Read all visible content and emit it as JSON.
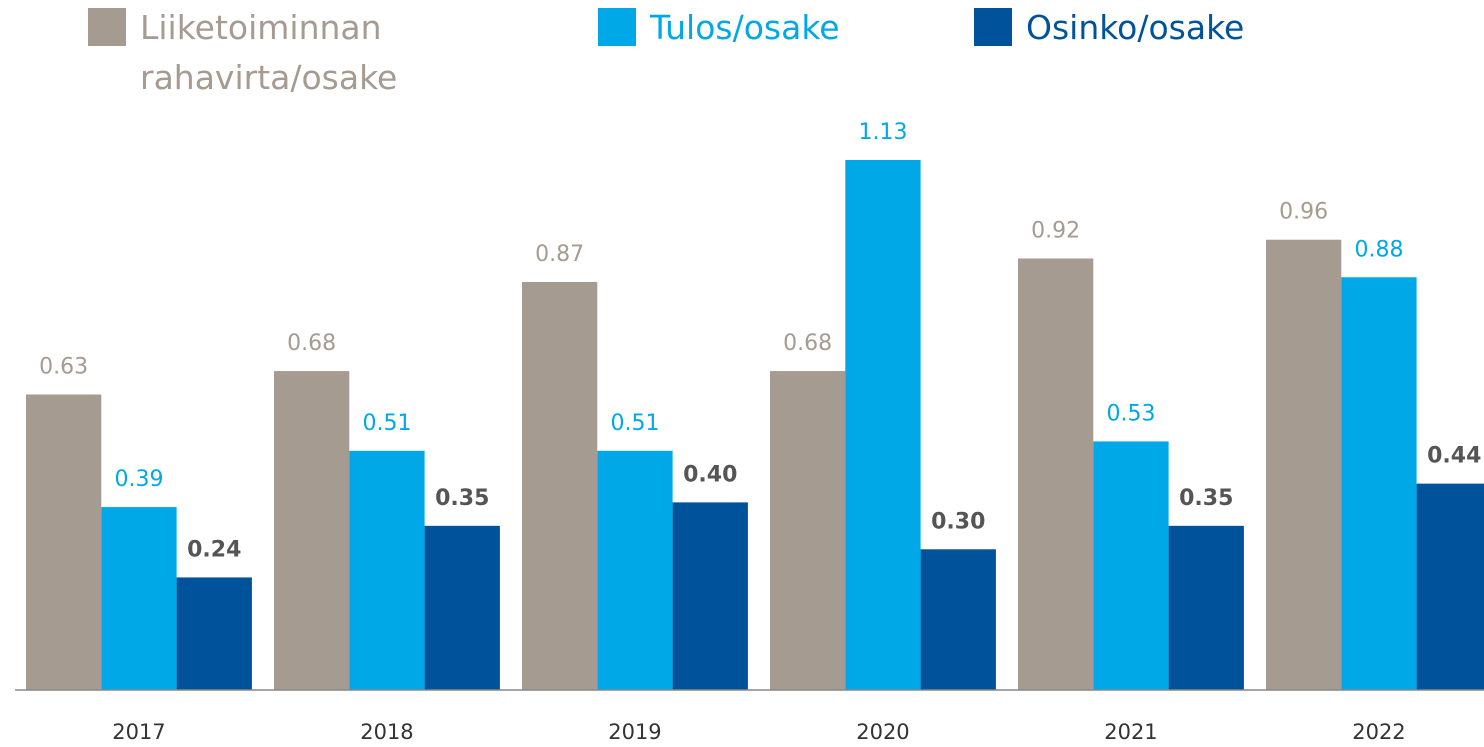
{
  "chart_data": {
    "type": "bar",
    "categories": [
      "2017",
      "2018",
      "2019",
      "2020",
      "2021",
      "2022"
    ],
    "series": [
      {
        "name": "Liiketoiminnan rahavirta/osake",
        "color": "#a59b90",
        "values": [
          0.63,
          0.68,
          0.87,
          0.68,
          0.92,
          0.96
        ],
        "value_labels": [
          "0.63",
          "0.68",
          "0.87",
          "0.68",
          "0.92",
          "0.96"
        ]
      },
      {
        "name": "Tulos/osake",
        "color": "#00a8e8",
        "values": [
          0.39,
          0.51,
          0.51,
          1.13,
          0.53,
          0.88
        ],
        "value_labels": [
          "0.39",
          "0.51",
          "0.51",
          "1.13",
          "0.53",
          "0.88"
        ]
      },
      {
        "name": "Osinko/osake",
        "color": "#00529b",
        "values": [
          0.24,
          0.35,
          0.4,
          0.3,
          0.35,
          0.44
        ],
        "value_labels": [
          "0.24",
          "0.35",
          "0.40",
          "0.30",
          "0.35",
          "0.44"
        ]
      }
    ]
  }
}
